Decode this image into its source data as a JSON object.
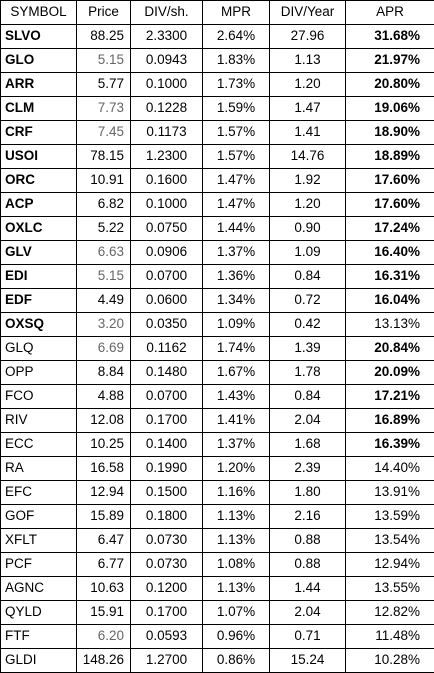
{
  "headers": [
    "SYMBOL",
    "Price",
    "DIV/sh.",
    "MPR",
    "DIV/Year",
    "APR"
  ],
  "colors": {
    "text": "#000000",
    "muted_price": "#666666",
    "border": "#000000"
  },
  "rows": [
    {
      "symbol": "SLVO",
      "price": "88.25",
      "div_sh": "2.3300",
      "mpr": "2.64%",
      "div_year": "27.96",
      "apr": "31.68%",
      "symbol_bold": true,
      "apr_bold": true,
      "price_gray": false
    },
    {
      "symbol": "GLO",
      "price": "5.15",
      "div_sh": "0.0943",
      "mpr": "1.83%",
      "div_year": "1.13",
      "apr": "21.97%",
      "symbol_bold": true,
      "apr_bold": true,
      "price_gray": true
    },
    {
      "symbol": "ARR",
      "price": "5.77",
      "div_sh": "0.1000",
      "mpr": "1.73%",
      "div_year": "1.20",
      "apr": "20.80%",
      "symbol_bold": true,
      "apr_bold": true,
      "price_gray": false
    },
    {
      "symbol": "CLM",
      "price": "7.73",
      "div_sh": "0.1228",
      "mpr": "1.59%",
      "div_year": "1.47",
      "apr": "19.06%",
      "symbol_bold": true,
      "apr_bold": true,
      "price_gray": true
    },
    {
      "symbol": "CRF",
      "price": "7.45",
      "div_sh": "0.1173",
      "mpr": "1.57%",
      "div_year": "1.41",
      "apr": "18.90%",
      "symbol_bold": true,
      "apr_bold": true,
      "price_gray": true
    },
    {
      "symbol": "USOI",
      "price": "78.15",
      "div_sh": "1.2300",
      "mpr": "1.57%",
      "div_year": "14.76",
      "apr": "18.89%",
      "symbol_bold": true,
      "apr_bold": true,
      "price_gray": false
    },
    {
      "symbol": "ORC",
      "price": "10.91",
      "div_sh": "0.1600",
      "mpr": "1.47%",
      "div_year": "1.92",
      "apr": "17.60%",
      "symbol_bold": true,
      "apr_bold": true,
      "price_gray": false
    },
    {
      "symbol": "ACP",
      "price": "6.82",
      "div_sh": "0.1000",
      "mpr": "1.47%",
      "div_year": "1.20",
      "apr": "17.60%",
      "symbol_bold": true,
      "apr_bold": true,
      "price_gray": false
    },
    {
      "symbol": "OXLC",
      "price": "5.22",
      "div_sh": "0.0750",
      "mpr": "1.44%",
      "div_year": "0.90",
      "apr": "17.24%",
      "symbol_bold": true,
      "apr_bold": true,
      "price_gray": false
    },
    {
      "symbol": "GLV",
      "price": "6.63",
      "div_sh": "0.0906",
      "mpr": "1.37%",
      "div_year": "1.09",
      "apr": "16.40%",
      "symbol_bold": true,
      "apr_bold": true,
      "price_gray": true
    },
    {
      "symbol": "EDI",
      "price": "5.15",
      "div_sh": "0.0700",
      "mpr": "1.36%",
      "div_year": "0.84",
      "apr": "16.31%",
      "symbol_bold": true,
      "apr_bold": true,
      "price_gray": true
    },
    {
      "symbol": "EDF",
      "price": "4.49",
      "div_sh": "0.0600",
      "mpr": "1.34%",
      "div_year": "0.72",
      "apr": "16.04%",
      "symbol_bold": true,
      "apr_bold": true,
      "price_gray": false
    },
    {
      "symbol": "OXSQ",
      "price": "3.20",
      "div_sh": "0.0350",
      "mpr": "1.09%",
      "div_year": "0.42",
      "apr": "13.13%",
      "symbol_bold": true,
      "apr_bold": false,
      "price_gray": true
    },
    {
      "symbol": "GLQ",
      "price": "6.69",
      "div_sh": "0.1162",
      "mpr": "1.74%",
      "div_year": "1.39",
      "apr": "20.84%",
      "symbol_bold": false,
      "apr_bold": true,
      "price_gray": true
    },
    {
      "symbol": "OPP",
      "price": "8.84",
      "div_sh": "0.1480",
      "mpr": "1.67%",
      "div_year": "1.78",
      "apr": "20.09%",
      "symbol_bold": false,
      "apr_bold": true,
      "price_gray": false
    },
    {
      "symbol": "FCO",
      "price": "4.88",
      "div_sh": "0.0700",
      "mpr": "1.43%",
      "div_year": "0.84",
      "apr": "17.21%",
      "symbol_bold": false,
      "apr_bold": true,
      "price_gray": false
    },
    {
      "symbol": "RIV",
      "price": "12.08",
      "div_sh": "0.1700",
      "mpr": "1.41%",
      "div_year": "2.04",
      "apr": "16.89%",
      "symbol_bold": false,
      "apr_bold": true,
      "price_gray": false
    },
    {
      "symbol": "ECC",
      "price": "10.25",
      "div_sh": "0.1400",
      "mpr": "1.37%",
      "div_year": "1.68",
      "apr": "16.39%",
      "symbol_bold": false,
      "apr_bold": true,
      "price_gray": false
    },
    {
      "symbol": "RA",
      "price": "16.58",
      "div_sh": "0.1990",
      "mpr": "1.20%",
      "div_year": "2.39",
      "apr": "14.40%",
      "symbol_bold": false,
      "apr_bold": false,
      "price_gray": false
    },
    {
      "symbol": "EFC",
      "price": "12.94",
      "div_sh": "0.1500",
      "mpr": "1.16%",
      "div_year": "1.80",
      "apr": "13.91%",
      "symbol_bold": false,
      "apr_bold": false,
      "price_gray": false
    },
    {
      "symbol": "GOF",
      "price": "15.89",
      "div_sh": "0.1800",
      "mpr": "1.13%",
      "div_year": "2.16",
      "apr": "13.59%",
      "symbol_bold": false,
      "apr_bold": false,
      "price_gray": false
    },
    {
      "symbol": "XFLT",
      "price": "6.47",
      "div_sh": "0.0730",
      "mpr": "1.13%",
      "div_year": "0.88",
      "apr": "13.54%",
      "symbol_bold": false,
      "apr_bold": false,
      "price_gray": false
    },
    {
      "symbol": "PCF",
      "price": "6.77",
      "div_sh": "0.0730",
      "mpr": "1.08%",
      "div_year": "0.88",
      "apr": "12.94%",
      "symbol_bold": false,
      "apr_bold": false,
      "price_gray": false
    },
    {
      "symbol": "AGNC",
      "price": "10.63",
      "div_sh": "0.1200",
      "mpr": "1.13%",
      "div_year": "1.44",
      "apr": "13.55%",
      "symbol_bold": false,
      "apr_bold": false,
      "price_gray": false
    },
    {
      "symbol": "QYLD",
      "price": "15.91",
      "div_sh": "0.1700",
      "mpr": "1.07%",
      "div_year": "2.04",
      "apr": "12.82%",
      "symbol_bold": false,
      "apr_bold": false,
      "price_gray": false
    },
    {
      "symbol": "FTF",
      "price": "6.20",
      "div_sh": "0.0593",
      "mpr": "0.96%",
      "div_year": "0.71",
      "apr": "11.48%",
      "symbol_bold": false,
      "apr_bold": false,
      "price_gray": true
    },
    {
      "symbol": "GLDI",
      "price": "148.26",
      "div_sh": "1.2700",
      "mpr": "0.86%",
      "div_year": "15.24",
      "apr": "10.28%",
      "symbol_bold": false,
      "apr_bold": false,
      "price_gray": false
    }
  ]
}
